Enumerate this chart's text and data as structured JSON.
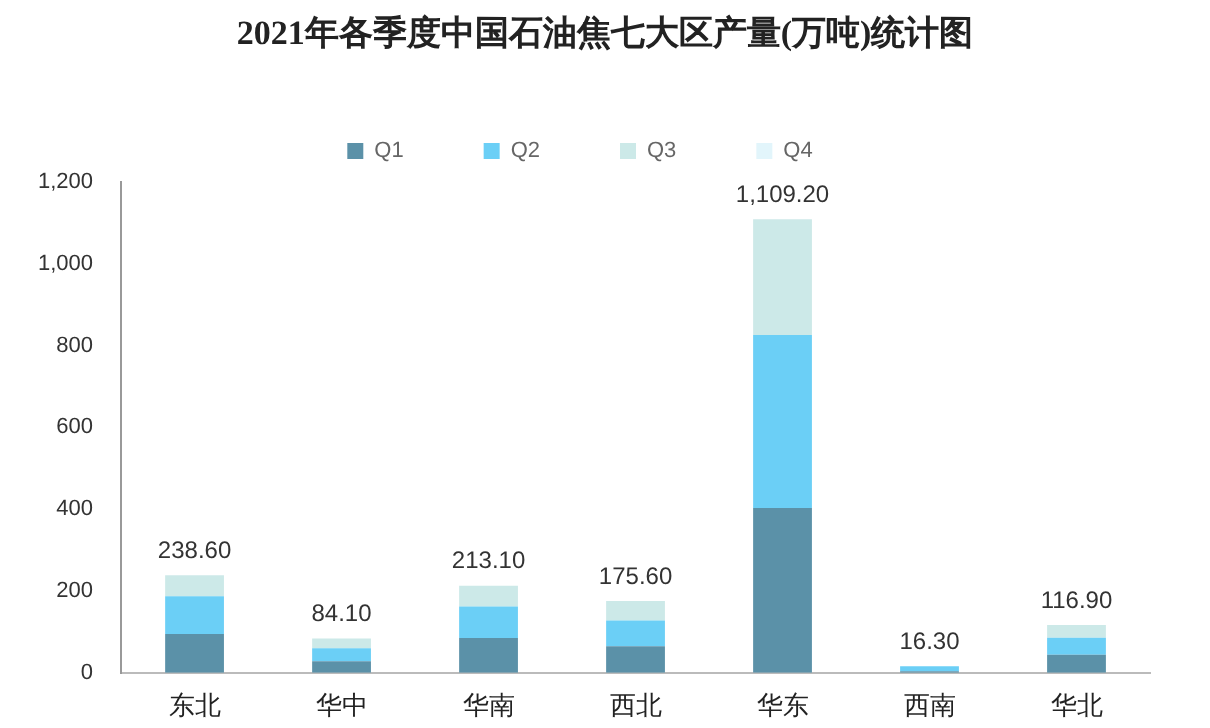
{
  "chart_data": {
    "type": "bar",
    "title": "2021年各季度中国石油焦七大区产量(万吨)统计图",
    "stacked": true,
    "legend": "top",
    "categories": [
      "东北",
      "华中",
      "华南",
      "西北",
      "华东",
      "西南",
      "华北"
    ],
    "series": [
      {
        "name": "Q1",
        "color": "#5b91a8",
        "values": [
          95,
          28,
          85,
          65,
          403,
          4,
          44
        ]
      },
      {
        "name": "Q2",
        "color": "#6bcff6",
        "values": [
          92,
          32,
          77,
          63,
          423,
          12.3,
          42
        ]
      },
      {
        "name": "Q3",
        "color": "#cce9e8",
        "values": [
          51.6,
          24.1,
          51.1,
          47.6,
          283.2,
          null,
          30.9
        ]
      },
      {
        "name": "Q4",
        "color": "#e2f5fb",
        "values": [
          null,
          null,
          null,
          null,
          null,
          null,
          null
        ]
      }
    ],
    "totals": [
      "238.60",
      "84.10",
      "213.10",
      "175.60",
      "1,109.20",
      "16.30",
      "116.90"
    ],
    "ylim": [
      0,
      1200
    ],
    "yticks": [
      0,
      200,
      400,
      600,
      800,
      {
        "value": 1000,
        "label": "1,000"
      },
      {
        "value": 1200,
        "label": "1,200"
      }
    ],
    "grid": false
  }
}
